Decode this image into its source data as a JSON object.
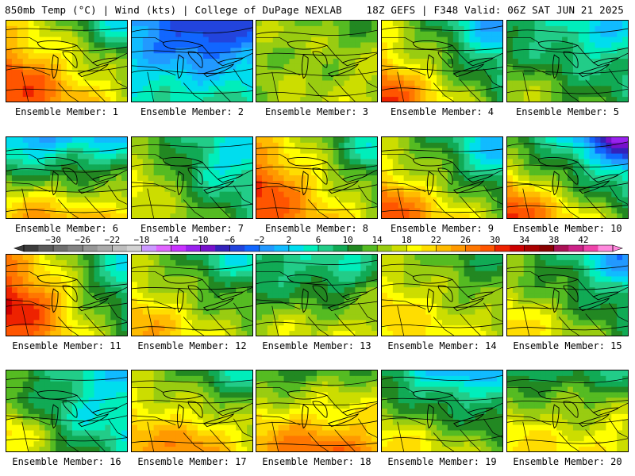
{
  "header": {
    "left": "850mb Temp (°C) | Wind (kts) | College of DuPage NEXLAB",
    "right": "18Z GEFS | F348 Valid: 06Z SAT JUN 21 2025"
  },
  "panels": [
    {
      "label": "Ensemble Member: 1",
      "field": {
        "base": 19,
        "gx": -6,
        "gy": 5,
        "warm": [
          0.15,
          0.7,
          4
        ],
        "cool": [
          0.9,
          0.1,
          5
        ]
      }
    },
    {
      "label": "Ensemble Member: 2",
      "field": {
        "base": 1,
        "gx": -1,
        "gy": 4,
        "warm": [
          0.95,
          0.95,
          3
        ],
        "cool": [
          0.55,
          0.25,
          4
        ]
      }
    },
    {
      "label": "Ensemble Member: 3",
      "field": {
        "base": 15,
        "gx": 1,
        "gy": 1,
        "warm": [
          0.1,
          0.2,
          2
        ],
        "cool": [
          0.9,
          0.15,
          2
        ]
      }
    },
    {
      "label": "Ensemble Member: 4",
      "field": {
        "base": 14,
        "gx": -8,
        "gy": 5,
        "warm": [
          0.05,
          0.95,
          6
        ],
        "cool": [
          0.85,
          0.2,
          3
        ]
      }
    },
    {
      "label": "Ensemble Member: 5",
      "field": {
        "base": 9,
        "gx": -2,
        "gy": 3,
        "warm": [
          0.1,
          0.9,
          3
        ],
        "cool": [
          0.75,
          0.2,
          3
        ]
      }
    },
    {
      "label": "Ensemble Member: 6",
      "field": {
        "base": 12,
        "gx": 0,
        "gy": 10,
        "warm": [
          0.2,
          0.9,
          3
        ],
        "cool": [
          0.2,
          0.1,
          3
        ]
      }
    },
    {
      "label": "Ensemble Member: 7",
      "field": {
        "base": 11,
        "gx": -5,
        "gy": 3,
        "warm": [
          0.1,
          0.5,
          3
        ],
        "cool": [
          0.7,
          0.4,
          4
        ]
      }
    },
    {
      "label": "Ensemble Member: 8",
      "field": {
        "base": 19,
        "gx": -7,
        "gy": 4,
        "warm": [
          0.1,
          0.6,
          4
        ],
        "cool": [
          0.9,
          0.2,
          5
        ]
      }
    },
    {
      "label": "Ensemble Member: 9",
      "field": {
        "base": 15,
        "gx": -6,
        "gy": 6,
        "warm": [
          0.05,
          0.9,
          5
        ],
        "cool": [
          0.9,
          0.3,
          5
        ]
      }
    },
    {
      "label": "Ensemble Member: 10",
      "field": {
        "base": 12,
        "gx": -8,
        "gy": 9,
        "warm": [
          0.05,
          0.9,
          4
        ],
        "cool": [
          0.95,
          0.05,
          6
        ]
      }
    },
    {
      "label": "Ensemble Member: 11",
      "field": {
        "base": 18,
        "gx": -10,
        "gy": 3,
        "warm": [
          0.2,
          0.6,
          6
        ],
        "cool": [
          0.95,
          0.3,
          3
        ]
      }
    },
    {
      "label": "Ensemble Member: 12",
      "field": {
        "base": 15,
        "gx": -4,
        "gy": 4,
        "warm": [
          0.1,
          0.85,
          3
        ],
        "cool": [
          0.8,
          0.1,
          4
        ]
      }
    },
    {
      "label": "Ensemble Member: 13",
      "field": {
        "base": 12,
        "gx": 2,
        "gy": 4,
        "warm": [
          0.15,
          0.9,
          3
        ],
        "cool": [
          0.7,
          0.2,
          4
        ]
      }
    },
    {
      "label": "Ensemble Member: 14",
      "field": {
        "base": 16,
        "gx": -2,
        "gy": 3,
        "warm": [
          0.1,
          0.6,
          3
        ],
        "cool": [
          0.8,
          0.2,
          2
        ]
      }
    },
    {
      "label": "Ensemble Member: 15",
      "field": {
        "base": 12,
        "gx": -5,
        "gy": 4,
        "warm": [
          0.1,
          0.9,
          2
        ],
        "cool": [
          0.95,
          0.1,
          5
        ]
      }
    },
    {
      "label": "Ensemble Member: 16",
      "field": {
        "base": 9,
        "gx": -5,
        "gy": 2,
        "warm": [
          0.05,
          0.8,
          6
        ],
        "cool": [
          0.6,
          0.5,
          3
        ]
      }
    },
    {
      "label": "Ensemble Member: 17",
      "field": {
        "base": 17,
        "gx": -3,
        "gy": 5,
        "warm": [
          0.5,
          0.85,
          4
        ],
        "cool": [
          0.9,
          0.1,
          4
        ]
      }
    },
    {
      "label": "Ensemble Member: 18",
      "field": {
        "base": 19,
        "gx": 0,
        "gy": 6,
        "warm": [
          0.5,
          0.9,
          3
        ],
        "cool": [
          0.2,
          0.1,
          3
        ]
      }
    },
    {
      "label": "Ensemble Member: 19",
      "field": {
        "base": 11,
        "gx": -3,
        "gy": 6,
        "warm": [
          0.1,
          0.9,
          3
        ],
        "cool": [
          0.5,
          0.05,
          4
        ]
      }
    },
    {
      "label": "Ensemble Member: 20",
      "field": {
        "base": 15,
        "gx": -2,
        "gy": 5,
        "warm": [
          0.95,
          0.6,
          3
        ],
        "cool": [
          0.1,
          0.05,
          4
        ]
      }
    }
  ],
  "colorbar": {
    "tick_labels": [
      "−30",
      "−26",
      "−22",
      "−18",
      "−14",
      "−10",
      "−6",
      "−2",
      "2",
      "6",
      "10",
      "14",
      "18",
      "22",
      "26",
      "30",
      "34",
      "38",
      "42"
    ],
    "tick_values": [
      -30,
      -26,
      -22,
      -18,
      -14,
      -10,
      -6,
      -2,
      2,
      6,
      10,
      14,
      18,
      22,
      26,
      30,
      34,
      38,
      42
    ],
    "min": -34,
    "max": 46,
    "step": 2,
    "colors": [
      "#3c3c3c",
      "#5a5a5a",
      "#6e6e6e",
      "#828282",
      "#969696",
      "#aaaaaa",
      "#bebebe",
      "#d2d2d2",
      "#cc99ff",
      "#e066ff",
      "#c833ff",
      "#9922ee",
      "#7711cc",
      "#3322bb",
      "#2244dd",
      "#1166ff",
      "#2299ff",
      "#11bbff",
      "#00ddee",
      "#00eebb",
      "#22cc88",
      "#11aa55",
      "#228822",
      "#55bb22",
      "#99cc11",
      "#ccdd00",
      "#ffff00",
      "#ffdd00",
      "#ffbb00",
      "#ff9900",
      "#ff7700",
      "#ff5500",
      "#ee2200",
      "#cc0000",
      "#aa0000",
      "#880000",
      "#aa1155",
      "#cc2288",
      "#ee44aa",
      "#ff88dd"
    ]
  }
}
